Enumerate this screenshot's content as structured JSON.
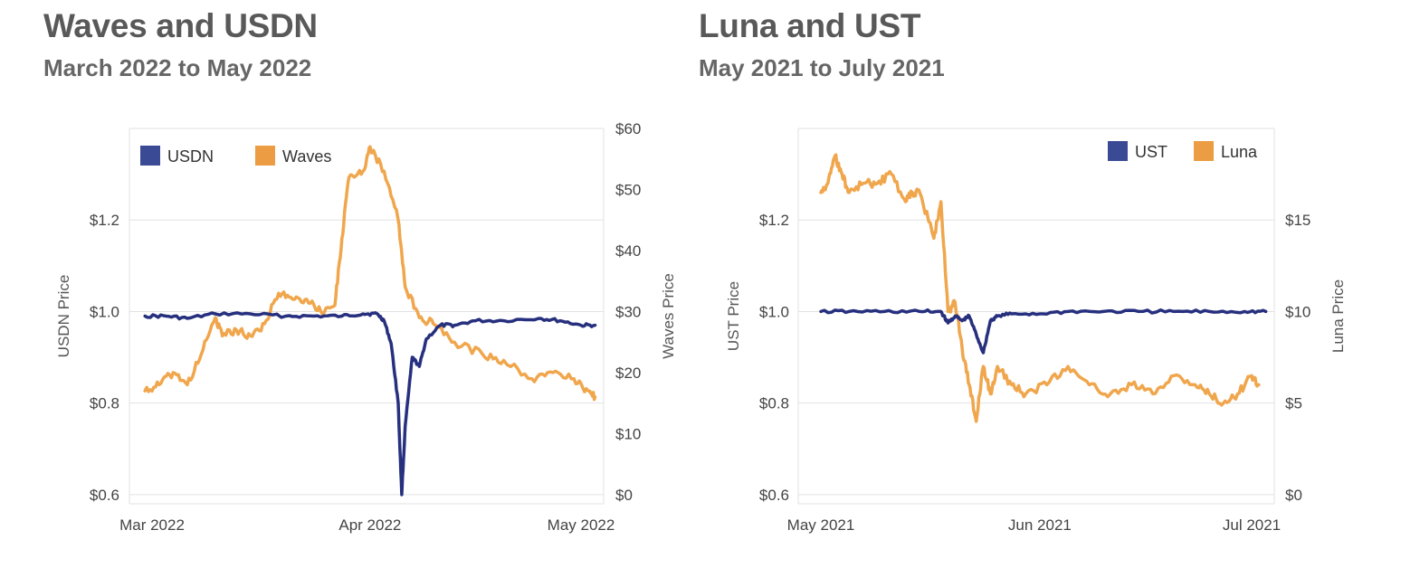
{
  "panels": {
    "left": {
      "title": "Waves and USDN",
      "subtitle": "March 2022 to May 2022"
    },
    "right": {
      "title": "Luna and UST",
      "subtitle": "May 2021 to July 2021"
    }
  },
  "colors": {
    "stable": "#27307e",
    "volatile": "#f0a64c",
    "legend_stable": "#3b4a94",
    "legend_volatile": "#ec9c42",
    "grid": "#e2e2e2"
  },
  "chart_data": [
    {
      "type": "line",
      "title": "Waves and USDN",
      "subtitle": "March 2022 to May 2022",
      "x_ticks": [
        "Mar 2022",
        "Apr 2022",
        "May 2022"
      ],
      "ylabel_left": "USDN Price",
      "ylabel_right": "Waves Price",
      "y_left_ticks": [
        "$0.6",
        "$0.8",
        "$1.0",
        "$1.2"
      ],
      "y_left_lim": [
        0.58,
        1.4
      ],
      "y_right_ticks": [
        "$0",
        "$10",
        "$20",
        "$30",
        "$40",
        "$50",
        "$60"
      ],
      "y_right_lim": [
        -1.5,
        60
      ],
      "grid": true,
      "legend_position": "top-left",
      "series": [
        {
          "name": "USDN",
          "axis": "left",
          "color_key": "stable",
          "x": [
            "2022-02-28",
            "2022-03-03",
            "2022-03-06",
            "2022-03-10",
            "2022-03-15",
            "2022-03-20",
            "2022-03-24",
            "2022-03-28",
            "2022-03-31",
            "2022-04-02",
            "2022-04-03",
            "2022-04-04",
            "2022-04-05",
            "2022-04-05T12:00",
            "2022-04-06",
            "2022-04-07",
            "2022-04-08",
            "2022-04-09",
            "2022-04-11",
            "2022-04-13",
            "2022-04-16",
            "2022-04-20",
            "2022-04-25",
            "2022-04-28",
            "2022-05-01",
            "2022-05-03"
          ],
          "y": [
            0.99,
            0.99,
            0.985,
            0.995,
            0.995,
            0.99,
            0.99,
            0.99,
            0.995,
            0.995,
            0.98,
            0.93,
            0.8,
            0.6,
            0.75,
            0.9,
            0.88,
            0.94,
            0.97,
            0.97,
            0.98,
            0.98,
            0.985,
            0.98,
            0.97,
            0.97
          ]
        },
        {
          "name": "Waves",
          "axis": "right",
          "color_key": "volatile",
          "x": [
            "2022-02-28",
            "2022-03-02",
            "2022-03-04",
            "2022-03-06",
            "2022-03-08",
            "2022-03-10",
            "2022-03-11",
            "2022-03-13",
            "2022-03-15",
            "2022-03-17",
            "2022-03-19",
            "2022-03-21",
            "2022-03-23",
            "2022-03-25",
            "2022-03-27",
            "2022-03-28",
            "2022-03-29",
            "2022-03-31",
            "2022-04-01",
            "2022-04-03",
            "2022-04-05",
            "2022-04-06",
            "2022-04-08",
            "2022-04-10",
            "2022-04-13",
            "2022-04-17",
            "2022-04-20",
            "2022-04-24",
            "2022-04-27",
            "2022-04-30",
            "2022-05-02",
            "2022-05-03"
          ],
          "y": [
            17,
            18,
            20,
            18,
            23,
            29,
            26,
            27,
            26,
            28,
            33,
            32,
            32,
            30,
            31,
            42,
            52,
            53,
            57,
            53,
            45,
            34,
            29,
            28,
            25,
            23,
            22,
            19,
            20,
            19,
            17,
            16
          ]
        }
      ]
    },
    {
      "type": "line",
      "title": "Luna and UST",
      "subtitle": "May 2021 to July 2021",
      "x_ticks": [
        "May 2021",
        "Jun 2021",
        "Jul 2021"
      ],
      "ylabel_left": "UST Price",
      "ylabel_right": "Luna Price",
      "y_left_ticks": [
        "$0.6",
        "$0.8",
        "$1.0",
        "$1.2"
      ],
      "y_left_lim": [
        0.58,
        1.4
      ],
      "y_right_ticks": [
        "$0",
        "$5",
        "$10",
        "$15"
      ],
      "y_right_lim": [
        -0.5,
        20
      ],
      "grid": true,
      "legend_position": "top-right",
      "series": [
        {
          "name": "UST",
          "axis": "left",
          "color_key": "stable",
          "x": [
            "2021-05-01",
            "2021-05-05",
            "2021-05-10",
            "2021-05-15",
            "2021-05-18",
            "2021-05-19",
            "2021-05-20",
            "2021-05-21",
            "2021-05-22",
            "2021-05-23",
            "2021-05-24",
            "2021-05-25",
            "2021-05-26",
            "2021-05-28",
            "2021-06-01",
            "2021-06-05",
            "2021-06-10",
            "2021-06-15",
            "2021-06-20",
            "2021-06-25",
            "2021-06-30",
            "2021-07-03"
          ],
          "y": [
            1.0,
            1.0,
            1.0,
            1.0,
            1.0,
            0.975,
            0.99,
            0.98,
            0.99,
            0.95,
            0.91,
            0.98,
            0.99,
            0.995,
            0.995,
            1.0,
            1.0,
            1.0,
            1.0,
            1.0,
            1.0,
            1.0
          ]
        },
        {
          "name": "Luna",
          "axis": "right",
          "color_key": "volatile",
          "x": [
            "2021-05-01",
            "2021-05-02",
            "2021-05-03",
            "2021-05-04",
            "2021-05-05",
            "2021-05-07",
            "2021-05-09",
            "2021-05-11",
            "2021-05-13",
            "2021-05-14",
            "2021-05-15",
            "2021-05-17",
            "2021-05-18",
            "2021-05-19",
            "2021-05-20",
            "2021-05-21",
            "2021-05-22",
            "2021-05-23",
            "2021-05-24",
            "2021-05-25",
            "2021-05-26",
            "2021-05-28",
            "2021-05-30",
            "2021-06-02",
            "2021-06-05",
            "2021-06-08",
            "2021-06-11",
            "2021-06-14",
            "2021-06-17",
            "2021-06-20",
            "2021-06-23",
            "2021-06-25",
            "2021-06-27",
            "2021-06-29",
            "2021-07-01",
            "2021-07-02"
          ],
          "y": [
            16.5,
            17,
            18.5,
            17.5,
            16.5,
            17,
            17,
            17.5,
            16,
            16.5,
            16.5,
            14,
            16,
            10,
            10.5,
            8,
            6,
            4,
            7,
            5.5,
            7,
            6,
            5.5,
            6,
            7,
            6,
            5.5,
            6,
            5.5,
            6.5,
            6,
            5.5,
            5,
            5.5,
            6.5,
            6
          ]
        }
      ]
    }
  ]
}
